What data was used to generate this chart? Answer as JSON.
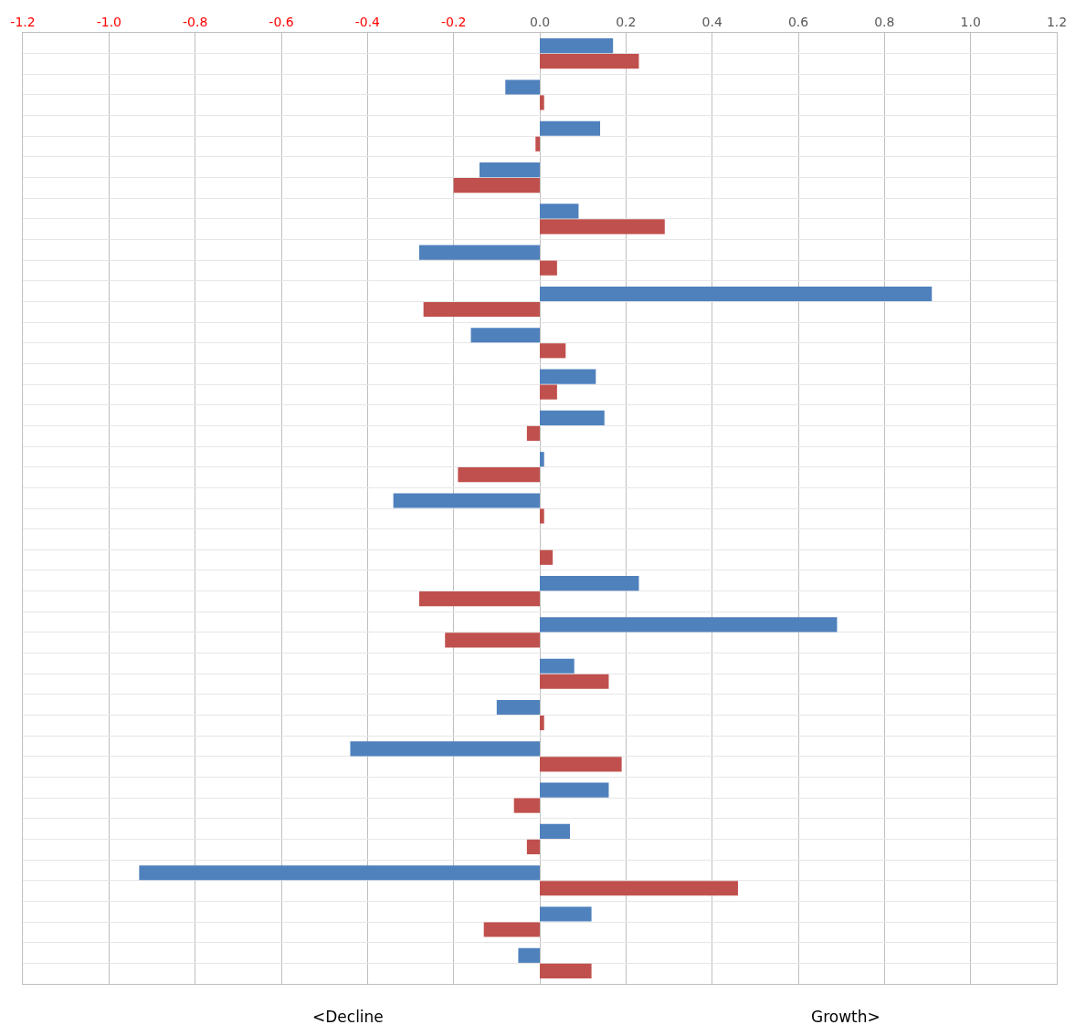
{
  "chart_data": {
    "type": "bar",
    "orientation": "horizontal",
    "categories": [
      null,
      null,
      null,
      null,
      null,
      null,
      null,
      null,
      null,
      null,
      null,
      null,
      null,
      null,
      null,
      null,
      null,
      null,
      null,
      null,
      null,
      null,
      null
    ],
    "series": [
      {
        "color": "#4f81bd",
        "values": [
          0.17,
          -0.08,
          0.14,
          -0.14,
          0.09,
          -0.28,
          0.91,
          -0.16,
          0.13,
          0.15,
          0.01,
          -0.34,
          null,
          0.23,
          0.69,
          0.08,
          -0.1,
          -0.44,
          0.16,
          0.07,
          -0.93,
          0.12,
          -0.05
        ]
      },
      {
        "color": "#c0504d",
        "values": [
          0.23,
          0.01,
          -0.01,
          -0.2,
          0.29,
          0.04,
          -0.27,
          0.06,
          0.04,
          -0.03,
          -0.19,
          0.01,
          0.03,
          -0.28,
          -0.22,
          0.16,
          0.01,
          0.19,
          -0.06,
          -0.03,
          0.46,
          -0.13,
          0.12
        ]
      }
    ],
    "xlim": [
      -1.2,
      1.2
    ],
    "xticks": [
      {
        "value": -1.2,
        "label": "-1.2"
      },
      {
        "value": -1.0,
        "label": "-1.0"
      },
      {
        "value": -0.8,
        "label": "-0.8"
      },
      {
        "value": -0.6,
        "label": "-0.6"
      },
      {
        "value": -0.4,
        "label": "-0.4"
      },
      {
        "value": -0.2,
        "label": "-0.2"
      },
      {
        "value": 0,
        "label": "0.0"
      },
      {
        "value": 0.2,
        "label": "0.2"
      },
      {
        "value": 0.4,
        "label": "0.4"
      },
      {
        "value": 0.6,
        "label": "0.6"
      },
      {
        "value": 0.8,
        "label": "0.8"
      },
      {
        "value": 1.0,
        "label": "1.0"
      },
      {
        "value": 1.2,
        "label": "1.2"
      }
    ],
    "grid": true,
    "annotations": [
      "<Decline",
      "Growth>"
    ]
  }
}
